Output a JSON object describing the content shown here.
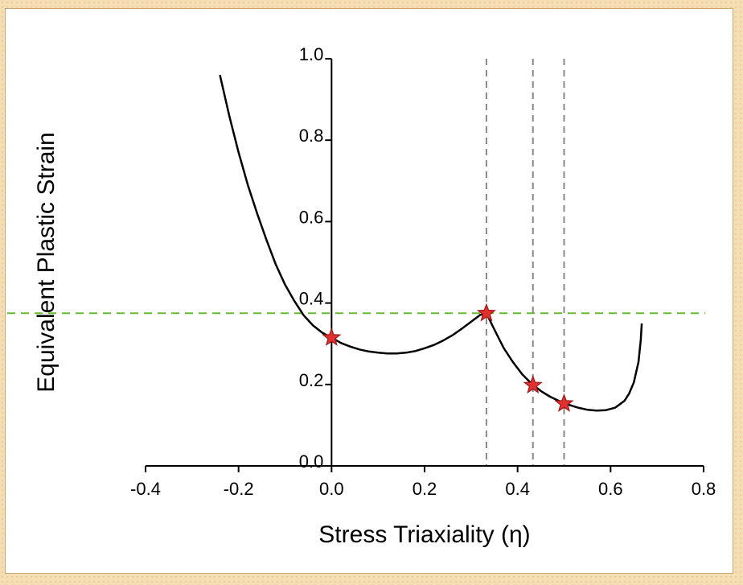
{
  "chart_data": {
    "type": "line",
    "xlabel": "Stress Triaxiality (η)",
    "ylabel": "Equivalent Plastic Strain",
    "xlim": [
      -0.4,
      0.8
    ],
    "ylim": [
      0.0,
      1.0
    ],
    "x_ticks": [
      "-0.4",
      "-0.2",
      "0.0",
      "0.2",
      "0.4",
      "0.6",
      "0.8"
    ],
    "y_ticks": [
      "0.0",
      "0.2",
      "0.4",
      "0.6",
      "0.8",
      "1.0"
    ],
    "x_tick_values": [
      -0.4,
      -0.2,
      0.0,
      0.2,
      0.4,
      0.6,
      0.8
    ],
    "y_tick_values": [
      0.0,
      0.2,
      0.4,
      0.6,
      0.8,
      1.0
    ],
    "series": [
      {
        "color": "#000000",
        "x": [
          -0.24,
          -0.22,
          -0.2,
          -0.18,
          -0.16,
          -0.14,
          -0.12,
          -0.1,
          -0.08,
          -0.06,
          -0.04,
          -0.02,
          0.0,
          0.02,
          0.04,
          0.06,
          0.08,
          0.1,
          0.12,
          0.14,
          0.16,
          0.18,
          0.2,
          0.22,
          0.24,
          0.26,
          0.28,
          0.3,
          0.32,
          0.333,
          0.35,
          0.37,
          0.39,
          0.41,
          0.43,
          0.45,
          0.47,
          0.49,
          0.51,
          0.53,
          0.55,
          0.57,
          0.59,
          0.61,
          0.63,
          0.64,
          0.65,
          0.66,
          0.665,
          0.667
        ],
        "y": [
          0.96,
          0.86,
          0.77,
          0.69,
          0.62,
          0.555,
          0.495,
          0.445,
          0.405,
          0.37,
          0.345,
          0.327,
          0.315,
          0.302,
          0.293,
          0.286,
          0.281,
          0.278,
          0.276,
          0.276,
          0.278,
          0.282,
          0.289,
          0.297,
          0.308,
          0.321,
          0.337,
          0.354,
          0.371,
          0.375,
          0.335,
          0.29,
          0.255,
          0.225,
          0.202,
          0.184,
          0.17,
          0.159,
          0.15,
          0.143,
          0.138,
          0.136,
          0.137,
          0.143,
          0.16,
          0.178,
          0.205,
          0.255,
          0.31,
          0.35
        ]
      }
    ],
    "reference_lines": {
      "horizontal": [
        {
          "y": 0.375,
          "color": "#66bb33",
          "style": "dashed"
        }
      ],
      "vertical": [
        {
          "x": 0.333,
          "color": "#888888",
          "style": "dashed"
        },
        {
          "x": 0.433,
          "color": "#888888",
          "style": "dashed"
        },
        {
          "x": 0.5,
          "color": "#888888",
          "style": "dashed"
        }
      ]
    },
    "markers": {
      "shape": "star",
      "fill": "#e03030",
      "stroke": "#a01818",
      "points": [
        {
          "x": 0.0,
          "y": 0.315
        },
        {
          "x": 0.333,
          "y": 0.375
        },
        {
          "x": 0.433,
          "y": 0.198
        },
        {
          "x": 0.5,
          "y": 0.153
        }
      ]
    },
    "grid": false,
    "legend": "none"
  }
}
